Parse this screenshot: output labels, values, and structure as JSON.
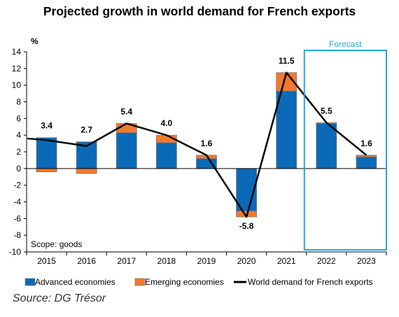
{
  "title": "Projected growth in world demand for French exports",
  "source": "Source: DG Trésor",
  "colors": {
    "advanced": "#0a6ab7",
    "emerging": "#f47a2b",
    "line": "#000000",
    "forecast_box": "#22a7d8",
    "axis": "#000000"
  },
  "chart_data": {
    "type": "bar",
    "stacked": true,
    "title": "Projected growth in world demand for French exports",
    "ylabel": "%",
    "ylim": [
      -10,
      14
    ],
    "yticks": [
      -10,
      -8,
      -6,
      -4,
      -2,
      0,
      2,
      4,
      6,
      8,
      10,
      12,
      14
    ],
    "categories": [
      "2015",
      "2016",
      "2017",
      "2018",
      "2019",
      "2020",
      "2021",
      "2022",
      "2023"
    ],
    "series": [
      {
        "name": "Advanced economies",
        "kind": "bar",
        "values": [
          3.7,
          3.2,
          4.3,
          3.1,
          1.2,
          -5.1,
          9.3,
          5.4,
          1.4
        ]
      },
      {
        "name": "Emerging economies",
        "kind": "bar",
        "values": [
          -0.4,
          -0.6,
          1.1,
          0.9,
          0.4,
          -0.7,
          2.2,
          0.1,
          0.2
        ]
      },
      {
        "name": "World demand for French exports",
        "kind": "line",
        "values": [
          3.4,
          2.7,
          5.4,
          4.0,
          1.6,
          -5.8,
          11.5,
          5.5,
          1.6
        ],
        "line_start_value": 3.6
      }
    ],
    "data_labels": [
      "3.4",
      "2.7",
      "5.4",
      "4.0",
      "1.6",
      "-5.8",
      "11.5",
      "5.5",
      "1.6"
    ],
    "annotation": "Scope: goods",
    "forecast_label": "Forecast",
    "forecast_categories": [
      "2022",
      "2023"
    ],
    "legend_position": "bottom",
    "grid": false
  }
}
